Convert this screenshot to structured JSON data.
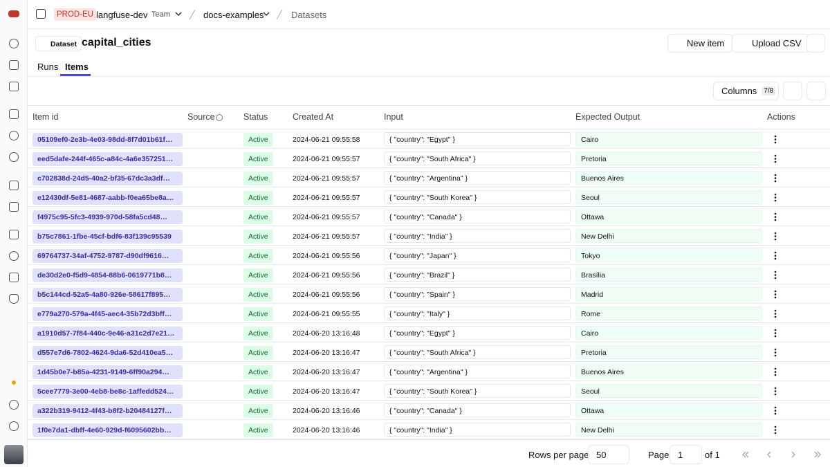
{
  "topbar": {
    "environment": "PROD-EU",
    "organization": "langfuse-dev",
    "role": "Team",
    "project": "docs-examples",
    "page": "Datasets"
  },
  "header": {
    "badge": "Dataset",
    "title": "capital_cities",
    "new_item": "New item",
    "upload_csv": "Upload CSV"
  },
  "tabs": [
    "Runs",
    "Items"
  ],
  "toolbar": {
    "columns": "Columns",
    "columns_count": "7/8"
  },
  "table": {
    "columns": [
      "Item id",
      "Source",
      "Status",
      "Created At",
      "Input",
      "Expected Output",
      "Actions"
    ],
    "rows": [
      {
        "id": "05109ef0-2e3b-4e03-98dd-8f7d01b61f…",
        "status": "Active",
        "created_at": "2024-06-21 09:55:58",
        "input": "{ \"country\": \"Egypt\" }",
        "expected_output": "Cairo"
      },
      {
        "id": "eed5dafe-244f-465c-a84c-4a6e357251…",
        "status": "Active",
        "created_at": "2024-06-21 09:55:57",
        "input": "{ \"country\": \"South Africa\" }",
        "expected_output": "Pretoria"
      },
      {
        "id": "c702838d-24d5-40a2-bf35-67dc3a3df…",
        "status": "Active",
        "created_at": "2024-06-21 09:55:57",
        "input": "{ \"country\": \"Argentina\" }",
        "expected_output": "Buenos Aires"
      },
      {
        "id": "e12430df-5e81-4687-aabb-f0ea65be8a…",
        "status": "Active",
        "created_at": "2024-06-21 09:55:57",
        "input": "{ \"country\": \"South Korea\" }",
        "expected_output": "Seoul"
      },
      {
        "id": "f4975c95-5fc3-4939-970d-58fa5cd48…",
        "status": "Active",
        "created_at": "2024-06-21 09:55:57",
        "input": "{ \"country\": \"Canada\" }",
        "expected_output": "Ottawa"
      },
      {
        "id": "b75c7861-1fbe-45cf-bdf6-83f139c95539",
        "status": "Active",
        "created_at": "2024-06-21 09:55:57",
        "input": "{ \"country\": \"India\" }",
        "expected_output": "New Delhi"
      },
      {
        "id": "69764737-34af-4752-9787-d90df9616…",
        "status": "Active",
        "created_at": "2024-06-21 09:55:56",
        "input": "{ \"country\": \"Japan\" }",
        "expected_output": "Tokyo"
      },
      {
        "id": "de30d2e0-f5d9-4854-88b6-0619771b8…",
        "status": "Active",
        "created_at": "2024-06-21 09:55:56",
        "input": "{ \"country\": \"Brazil\" }",
        "expected_output": "Brasília"
      },
      {
        "id": "b5c144cd-52a5-4a80-926e-58617f895…",
        "status": "Active",
        "created_at": "2024-06-21 09:55:56",
        "input": "{ \"country\": \"Spain\" }",
        "expected_output": "Madrid"
      },
      {
        "id": "e779a270-579a-4f45-aec4-35b72d3bff…",
        "status": "Active",
        "created_at": "2024-06-21 09:55:55",
        "input": "{ \"country\": \"Italy\" }",
        "expected_output": "Rome"
      },
      {
        "id": "a1910d57-7f84-440c-9e46-a31c2d7e21…",
        "status": "Active",
        "created_at": "2024-06-20 13:16:48",
        "input": "{ \"country\": \"Egypt\" }",
        "expected_output": "Cairo"
      },
      {
        "id": "d557e7d6-7802-4624-9da6-52d410ea5…",
        "status": "Active",
        "created_at": "2024-06-20 13:16:47",
        "input": "{ \"country\": \"South Africa\" }",
        "expected_output": "Pretoria"
      },
      {
        "id": "1d45b0e7-b85a-4231-9149-6ff90a294…",
        "status": "Active",
        "created_at": "2024-06-20 13:16:47",
        "input": "{ \"country\": \"Argentina\" }",
        "expected_output": "Buenos Aires"
      },
      {
        "id": "5cee7779-3e00-4eb8-be8c-1affedd524…",
        "status": "Active",
        "created_at": "2024-06-20 13:16:47",
        "input": "{ \"country\": \"South Korea\" }",
        "expected_output": "Seoul"
      },
      {
        "id": "a322b319-9412-4f43-b8f2-b20484127f…",
        "status": "Active",
        "created_at": "2024-06-20 13:16:46",
        "input": "{ \"country\": \"Canada\" }",
        "expected_output": "Ottawa"
      },
      {
        "id": "1f0e7da1-dbff-4e60-929d-f6095602bb…",
        "status": "Active",
        "created_at": "2024-06-20 13:16:46",
        "input": "{ \"country\": \"India\" }",
        "expected_output": "New Delhi"
      }
    ]
  },
  "footer": {
    "rows_per_page": "Rows per page",
    "page_size": "50",
    "page": "Page",
    "page_number": "1",
    "of_pages": "of 1"
  }
}
